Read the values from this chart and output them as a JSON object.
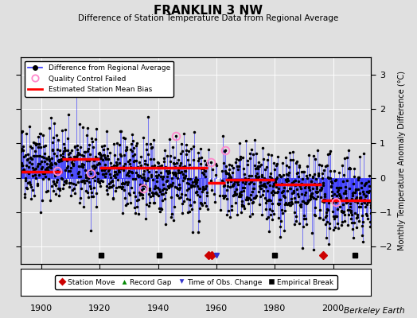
{
  "title": "FRANKLIN 3 NW",
  "subtitle": "Difference of Station Temperature Data from Regional Average",
  "ylabel": "Monthly Temperature Anomaly Difference (°C)",
  "xlabel_credit": "Berkeley Earth",
  "xlim": [
    1893,
    2013
  ],
  "ylim": [
    -2.5,
    3.5
  ],
  "yticks": [
    -2,
    -1,
    0,
    1,
    2,
    3
  ],
  "xticks": [
    1900,
    1920,
    1940,
    1960,
    1980,
    2000
  ],
  "background_color": "#e0e0e0",
  "plot_bg_color": "#e0e0e0",
  "line_color": "#3333ff",
  "dot_color": "#000000",
  "bias_color": "#ff0000",
  "seed": 42,
  "n_points": 1320,
  "start_year": 1893,
  "end_year": 2013,
  "bias_segments": [
    {
      "x_start": 1893,
      "x_end": 1907,
      "bias": 0.18
    },
    {
      "x_start": 1907,
      "x_end": 1920,
      "bias": 0.55
    },
    {
      "x_start": 1920,
      "x_end": 1957,
      "bias": 0.3
    },
    {
      "x_start": 1957,
      "x_end": 1963,
      "bias": -0.15
    },
    {
      "x_start": 1963,
      "x_end": 1980,
      "bias": -0.05
    },
    {
      "x_start": 1980,
      "x_end": 1996,
      "bias": -0.2
    },
    {
      "x_start": 1996,
      "x_end": 2013,
      "bias": -0.65
    }
  ],
  "station_moves": [
    1957.3,
    1958.5,
    1996.5
  ],
  "obs_changes": [
    1960.0
  ],
  "empirical_breaks": [
    1920.5,
    1940.5,
    1980.0,
    2007.5
  ],
  "record_gaps": [],
  "qc_failed_x": [
    1905.5,
    1917.0,
    1935.0,
    1946.0,
    1958.0,
    1963.0,
    2001.0
  ],
  "gap_start": 1957,
  "gap_end": 1962
}
